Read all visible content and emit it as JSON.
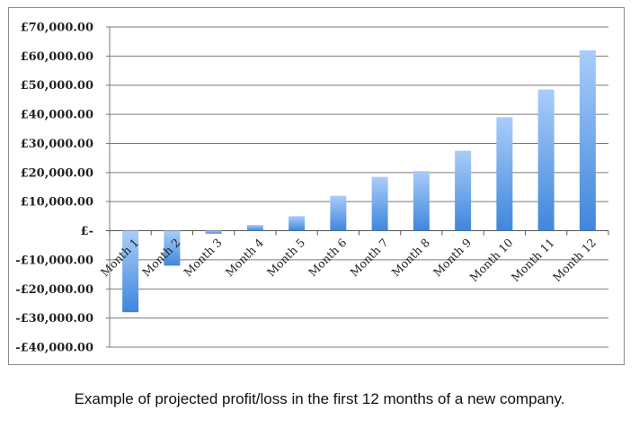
{
  "chart_data": {
    "type": "bar",
    "categories": [
      "Month 1",
      "Month 2",
      "Month 3",
      "Month 4",
      "Month 5",
      "Month 6",
      "Month 7",
      "Month 8",
      "Month 9",
      "Month 10",
      "Month 11",
      "Month 12"
    ],
    "series": [
      {
        "values": [
          -28000,
          -12000,
          -1000,
          2000,
          5000,
          12000,
          18500,
          20500,
          27500,
          39000,
          48500,
          62000
        ]
      }
    ],
    "ylim": [
      -40000,
      70000
    ],
    "yticks": [
      70000,
      60000,
      50000,
      40000,
      30000,
      20000,
      10000,
      0,
      -10000,
      -20000,
      -30000,
      -40000
    ],
    "ytick_labels": [
      "£70,000.00",
      "£60,000.00",
      "£50,000.00",
      "£40,000.00",
      "£30,000.00",
      "£20,000.00",
      "£10,000.00",
      "£-",
      "-£10,000.00",
      "-£20,000.00",
      "-£30,000.00",
      "-£40,000.00"
    ],
    "grid": true,
    "legend": "none",
    "bar_color_top": "#a9cdfa",
    "bar_color_bottom": "#3f86dc"
  },
  "caption": "Example of projected profit/loss in the first 12 months of a new company."
}
